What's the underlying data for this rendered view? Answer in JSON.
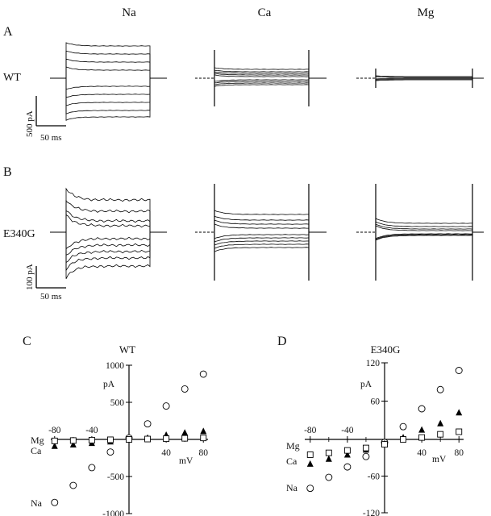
{
  "columns": [
    "Na",
    "Ca",
    "Mg"
  ],
  "panels": {
    "A": {
      "letter": "A",
      "row_label": "WT"
    },
    "B": {
      "letter": "B",
      "row_label": "E340G"
    },
    "C": {
      "letter": "C",
      "title": "WT"
    },
    "D": {
      "letter": "D",
      "title": "E340G"
    }
  },
  "scalebars": {
    "A": {
      "current": "500 pA",
      "time": "50 ms"
    },
    "B": {
      "current": "100 pA",
      "time": "50 ms"
    }
  },
  "chart_data": [
    {
      "panel": "C",
      "type": "scatter",
      "title": "WT",
      "xlabel": "mV",
      "ylabel": "pA",
      "xlim": [
        -90,
        85
      ],
      "ylim": [
        -1000,
        1000
      ],
      "xticks": [
        -80,
        -40,
        40,
        80
      ],
      "yticks": [
        1000,
        500,
        -500,
        -1000
      ],
      "series": [
        {
          "name": "Na",
          "marker": "circle",
          "x": [
            -80,
            -60,
            -40,
            -20,
            0,
            20,
            40,
            60,
            80
          ],
          "y": [
            -850,
            -620,
            -380,
            -170,
            20,
            210,
            450,
            680,
            880
          ]
        },
        {
          "name": "Ca",
          "marker": "triangle",
          "x": [
            -80,
            -60,
            -40,
            -20,
            0,
            20,
            40,
            60,
            80
          ],
          "y": [
            -90,
            -70,
            -50,
            -30,
            -5,
            20,
            60,
            90,
            110
          ]
        },
        {
          "name": "Mg",
          "marker": "square",
          "x": [
            -80,
            -60,
            -40,
            -20,
            0,
            20,
            40,
            60,
            80
          ],
          "y": [
            -20,
            -15,
            -10,
            -5,
            0,
            5,
            10,
            15,
            20
          ]
        }
      ]
    },
    {
      "panel": "D",
      "type": "scatter",
      "title": "E340G",
      "xlabel": "mV",
      "ylabel": "pA",
      "xlim": [
        -90,
        85
      ],
      "ylim": [
        -120,
        120
      ],
      "xticks": [
        -80,
        -40,
        40,
        80
      ],
      "yticks": [
        120,
        60,
        -60,
        -120
      ],
      "series": [
        {
          "name": "Na",
          "marker": "circle",
          "x": [
            -80,
            -60,
            -40,
            -20,
            0,
            20,
            40,
            60,
            80
          ],
          "y": [
            -80,
            -62,
            -45,
            -28,
            -5,
            20,
            48,
            78,
            108
          ]
        },
        {
          "name": "Ca",
          "marker": "triangle",
          "x": [
            -80,
            -60,
            -40,
            -20,
            0,
            20,
            40,
            60,
            80
          ],
          "y": [
            -40,
            -32,
            -25,
            -17,
            -7,
            3,
            15,
            25,
            42
          ]
        },
        {
          "name": "Mg",
          "marker": "square",
          "x": [
            -80,
            -60,
            -40,
            -20,
            0,
            20,
            40,
            60,
            80
          ],
          "y": [
            -25,
            -22,
            -18,
            -14,
            -8,
            0,
            3,
            8,
            12
          ]
        }
      ]
    }
  ]
}
